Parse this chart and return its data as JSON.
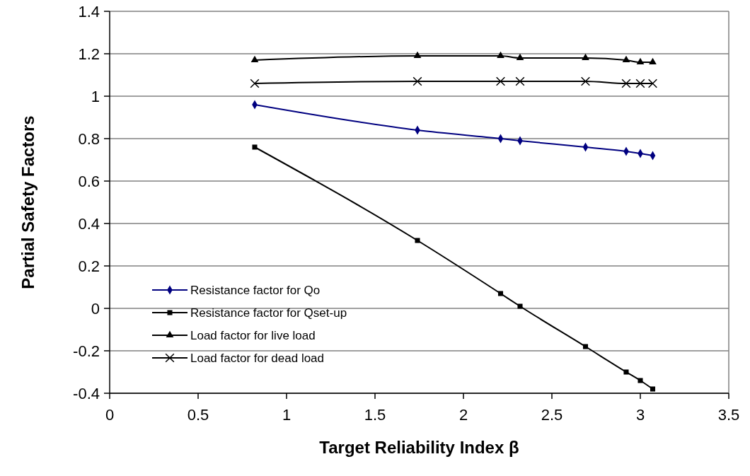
{
  "chart_data": {
    "type": "line",
    "xlabel": "Target Reliability Index β",
    "ylabel": "Partial Safety Factors",
    "x": [
      0.82,
      1.74,
      2.21,
      2.32,
      2.69,
      2.92,
      3.0,
      3.07
    ],
    "series": [
      {
        "name": "Resistance factor for Qo",
        "color": "#000080",
        "marker": "diamond",
        "values": [
          0.96,
          0.84,
          0.8,
          0.79,
          0.76,
          0.74,
          0.73,
          0.72
        ]
      },
      {
        "name": "Resistance factor for Qset-up",
        "color": "#000000",
        "marker": "square",
        "values": [
          0.76,
          0.32,
          0.07,
          0.01,
          -0.18,
          -0.3,
          -0.34,
          -0.38
        ]
      },
      {
        "name": "Load factor for live load",
        "color": "#000000",
        "marker": "triangle",
        "values": [
          1.17,
          1.19,
          1.19,
          1.18,
          1.18,
          1.17,
          1.16,
          1.16
        ]
      },
      {
        "name": "Load factor for dead load",
        "color": "#000000",
        "marker": "cross",
        "values": [
          1.06,
          1.07,
          1.07,
          1.07,
          1.07,
          1.06,
          1.06,
          1.06
        ]
      }
    ],
    "xlim": [
      0,
      3.5
    ],
    "xticks": [
      0,
      0.5,
      1,
      1.5,
      2,
      2.5,
      3,
      3.5
    ],
    "ylim": [
      -0.4,
      1.4
    ],
    "yticks": [
      -0.4,
      -0.2,
      0,
      0.2,
      0.4,
      0.6,
      0.8,
      1,
      1.2,
      1.4
    ],
    "grid": "y",
    "legend": "bottom left",
    "line_style": "solid"
  }
}
